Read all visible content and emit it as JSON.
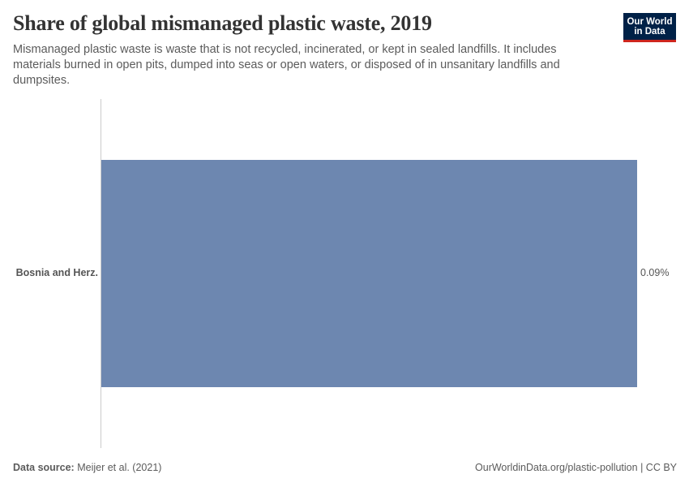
{
  "header": {
    "title": "Share of global mismanaged plastic waste, 2019",
    "subtitle": "Mismanaged plastic waste is waste that is not recycled, incinerated, or kept in sealed landfills. It includes materials burned in open pits, dumped into seas or open waters, or disposed of in unsanitary landfills and dumpsites.",
    "logo": {
      "line1": "Our World",
      "line2": "in Data",
      "bg_color": "#002147",
      "accent_color": "#ce261e"
    }
  },
  "chart_data": {
    "type": "bar",
    "orientation": "horizontal",
    "title": "Share of global mismanaged plastic waste, 2019",
    "subtitle": "Mismanaged plastic waste is waste that is not recycled, incinerated, or kept in sealed landfills. It includes materials burned in open pits, dumped into seas or open waters, or disposed of in unsanitary landfills and dumpsites.",
    "categories": [
      "Bosnia and Herz."
    ],
    "values": [
      0.09
    ],
    "value_labels": [
      "0.09%"
    ],
    "unit": "%",
    "xlabel": "",
    "ylabel": "",
    "xlim": [
      0,
      0.09
    ],
    "grid": false,
    "legend": null,
    "bar_color": "#6d87b0"
  },
  "footer": {
    "source_label": "Data source:",
    "source_value": "Meijer et al. (2021)",
    "link_text": "OurWorldinData.org/plastic-pollution",
    "separator": "|",
    "license": "CC BY"
  }
}
